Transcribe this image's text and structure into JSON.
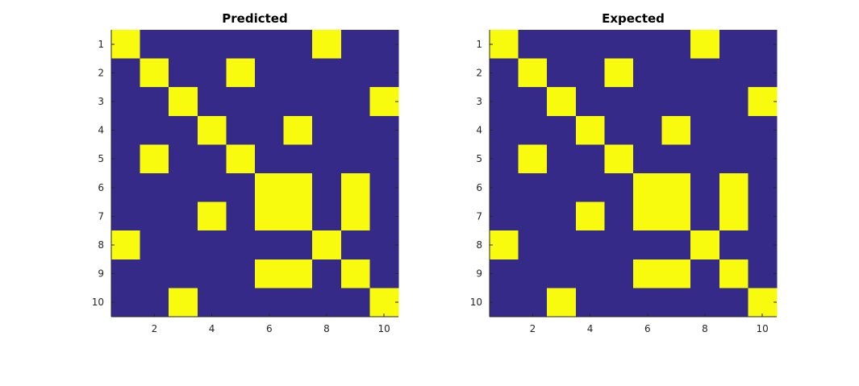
{
  "chart_data": [
    {
      "type": "heatmap",
      "title": "Predicted",
      "xlabel": "",
      "ylabel": "",
      "xlim": [
        0.5,
        10.5
      ],
      "ylim": [
        0.5,
        10.5
      ],
      "x_ticks": [
        2,
        4,
        6,
        8,
        10
      ],
      "y_ticks": [
        1,
        2,
        3,
        4,
        5,
        6,
        7,
        8,
        9,
        10
      ],
      "y_direction": "reverse",
      "colors": {
        "0": "#352a87",
        "1": "#f9fb0e"
      },
      "matrix": [
        [
          1,
          0,
          0,
          0,
          0,
          0,
          0,
          1,
          0,
          0
        ],
        [
          0,
          1,
          0,
          0,
          1,
          0,
          0,
          0,
          0,
          0
        ],
        [
          0,
          0,
          1,
          0,
          0,
          0,
          0,
          0,
          0,
          1
        ],
        [
          0,
          0,
          0,
          1,
          0,
          0,
          1,
          0,
          0,
          0
        ],
        [
          0,
          1,
          0,
          0,
          1,
          0,
          0,
          0,
          0,
          0
        ],
        [
          0,
          0,
          0,
          0,
          0,
          1,
          1,
          0,
          1,
          0
        ],
        [
          0,
          0,
          0,
          1,
          0,
          1,
          1,
          0,
          1,
          0
        ],
        [
          1,
          0,
          0,
          0,
          0,
          0,
          0,
          1,
          0,
          0
        ],
        [
          0,
          0,
          0,
          0,
          0,
          1,
          1,
          0,
          1,
          0
        ],
        [
          0,
          0,
          1,
          0,
          0,
          0,
          0,
          0,
          0,
          1
        ]
      ]
    },
    {
      "type": "heatmap",
      "title": "Expected",
      "xlabel": "",
      "ylabel": "",
      "xlim": [
        0.5,
        10.5
      ],
      "ylim": [
        0.5,
        10.5
      ],
      "x_ticks": [
        2,
        4,
        6,
        8,
        10
      ],
      "y_ticks": [
        1,
        2,
        3,
        4,
        5,
        6,
        7,
        8,
        9,
        10
      ],
      "y_direction": "reverse",
      "colors": {
        "0": "#352a87",
        "1": "#f9fb0e"
      },
      "matrix": [
        [
          1,
          0,
          0,
          0,
          0,
          0,
          0,
          1,
          0,
          0
        ],
        [
          0,
          1,
          0,
          0,
          1,
          0,
          0,
          0,
          0,
          0
        ],
        [
          0,
          0,
          1,
          0,
          0,
          0,
          0,
          0,
          0,
          1
        ],
        [
          0,
          0,
          0,
          1,
          0,
          0,
          1,
          0,
          0,
          0
        ],
        [
          0,
          1,
          0,
          0,
          1,
          0,
          0,
          0,
          0,
          0
        ],
        [
          0,
          0,
          0,
          0,
          0,
          1,
          1,
          0,
          1,
          0
        ],
        [
          0,
          0,
          0,
          1,
          0,
          1,
          1,
          0,
          1,
          0
        ],
        [
          1,
          0,
          0,
          0,
          0,
          0,
          0,
          1,
          0,
          0
        ],
        [
          0,
          0,
          0,
          0,
          0,
          1,
          1,
          0,
          1,
          0
        ],
        [
          0,
          0,
          1,
          0,
          0,
          0,
          0,
          0,
          0,
          1
        ]
      ]
    }
  ]
}
